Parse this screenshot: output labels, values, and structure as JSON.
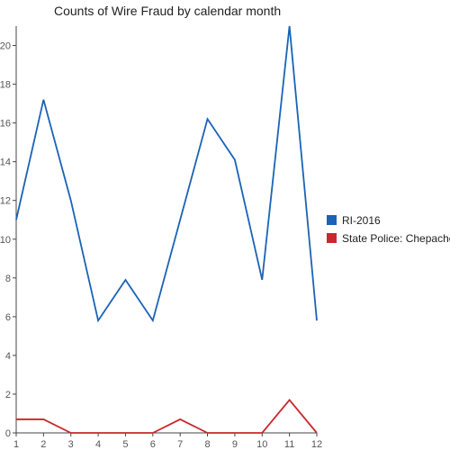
{
  "chart_data": {
    "type": "line",
    "title": "Counts of Wire Fraud by calendar month",
    "xlabel": "",
    "ylabel": "",
    "x": [
      1,
      2,
      3,
      4,
      5,
      6,
      7,
      8,
      9,
      10,
      11,
      12
    ],
    "xticks": [
      1,
      2,
      3,
      4,
      5,
      6,
      7,
      8,
      9,
      10,
      11,
      12
    ],
    "ylim": [
      0,
      21
    ],
    "yticks": [
      0,
      2,
      4,
      6,
      8,
      10,
      12,
      14,
      16,
      18,
      20
    ],
    "grid": false,
    "legend_position": "right",
    "series": [
      {
        "name": "RI-2016",
        "color": "#1a63b7",
        "values": [
          11,
          17.2,
          12,
          5.8,
          7.9,
          5.8,
          11,
          16.2,
          14.1,
          7.9,
          21,
          5.8
        ]
      },
      {
        "name": "State Police: Chepachet",
        "color": "#c8282d",
        "values": [
          0.7,
          0.7,
          0,
          0,
          0,
          0,
          0.7,
          0,
          0,
          0,
          1.7,
          0
        ]
      }
    ]
  }
}
